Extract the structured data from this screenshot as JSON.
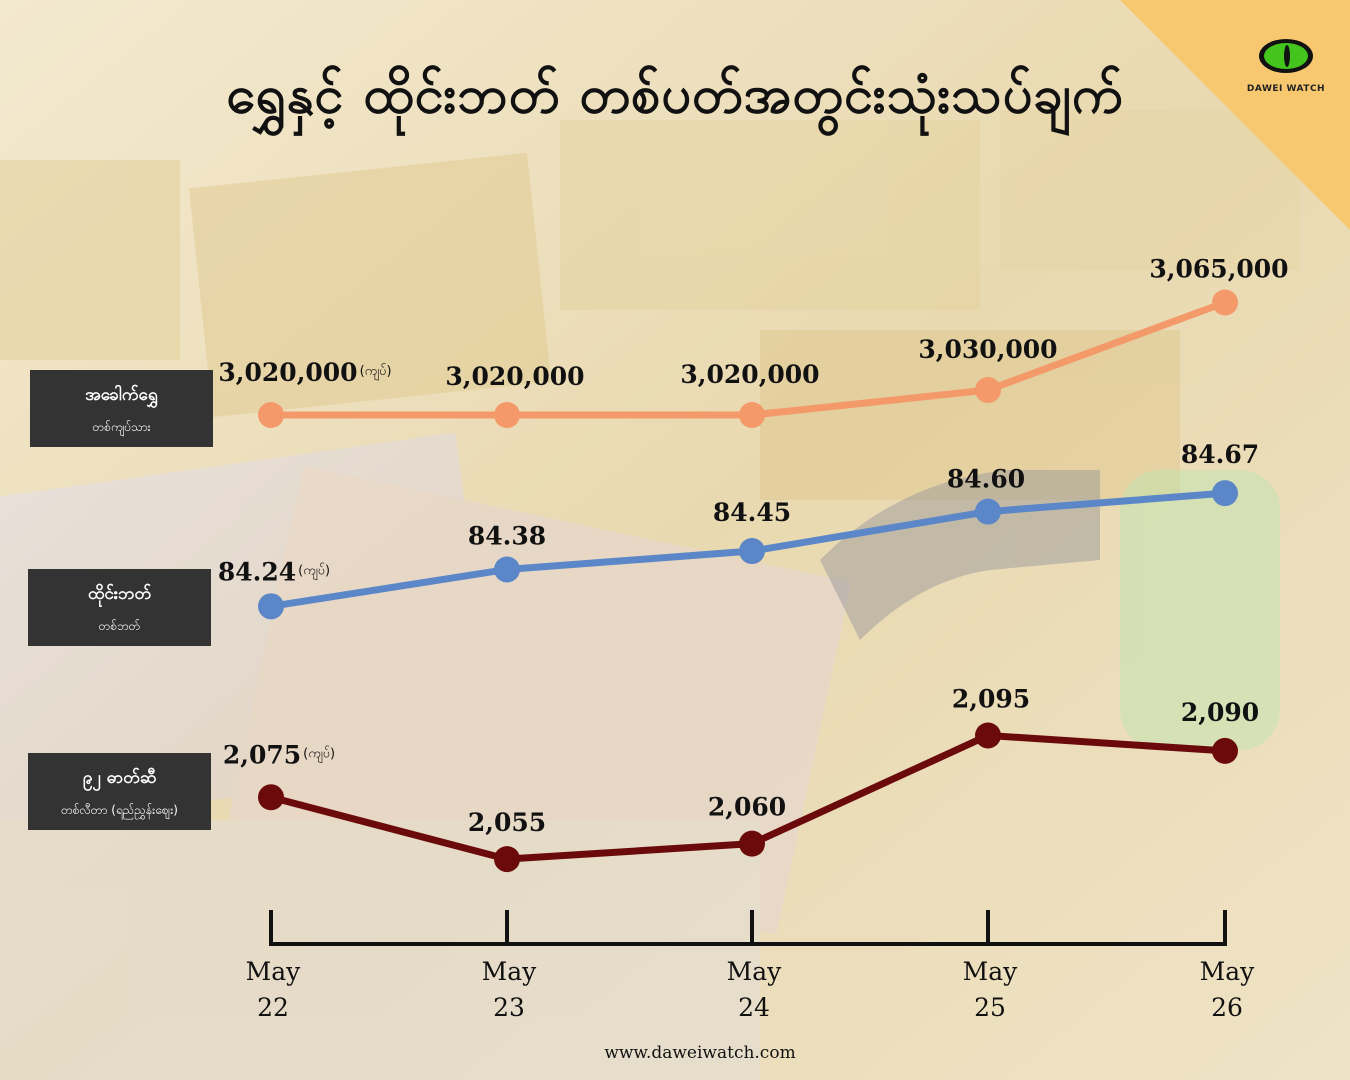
{
  "title": "ရွှေနှင့် ထိုင်းဘတ် တစ်ပတ်အတွင်းသုံးသပ်ချက်",
  "logo": {
    "text": "DAWEI WATCH",
    "icon": "cat-eye-icon"
  },
  "footer": "www.daweiwatch.com",
  "colors": {
    "gold": "#f4996a",
    "baht": "#5b87c8",
    "fuel": "#6b0a0a",
    "legend_bg": "#333333",
    "corner": "#f8c870"
  },
  "legend": [
    {
      "name": "အခေါက်ရွှေ",
      "unit": "တစ်ကျပ်သား"
    },
    {
      "name": "ထိုင်းဘတ်",
      "unit": "တစ်ဘတ်"
    },
    {
      "name": "၉၂ ဓာတ်ဆီ",
      "unit": "တစ်လီတာ (ရည်ညွှန်းဈေး)"
    }
  ],
  "chart_data": {
    "type": "line",
    "categories": [
      "May 22",
      "May 23",
      "May 24",
      "May 25",
      "May 26"
    ],
    "category_lines": [
      [
        "May",
        "22"
      ],
      [
        "May",
        "23"
      ],
      [
        "May",
        "24"
      ],
      [
        "May",
        "25"
      ],
      [
        "May",
        "26"
      ]
    ],
    "unit_label": "(ကျပ်)",
    "series": [
      {
        "name": "အခေါက်ရွှေ",
        "values": [
          3020000,
          3020000,
          3020000,
          3030000,
          3065000
        ],
        "labels": [
          "3,020,000",
          "3,020,000",
          "3,020,000",
          "3,030,000",
          "3,065,000"
        ],
        "color": "#f4996a"
      },
      {
        "name": "ထိုင်းဘတ်",
        "values": [
          84.24,
          84.38,
          84.45,
          84.6,
          84.67
        ],
        "labels": [
          "84.24",
          "84.38",
          "84.45",
          "84.60",
          "84.67"
        ],
        "color": "#5b87c8"
      },
      {
        "name": "၉၂ ဓာတ်ဆီ",
        "values": [
          2075,
          2055,
          2060,
          2095,
          2090
        ],
        "labels": [
          "2,075",
          "2,055",
          "2,060",
          "2,095",
          "2,090"
        ],
        "color": "#6b0a0a"
      }
    ]
  }
}
